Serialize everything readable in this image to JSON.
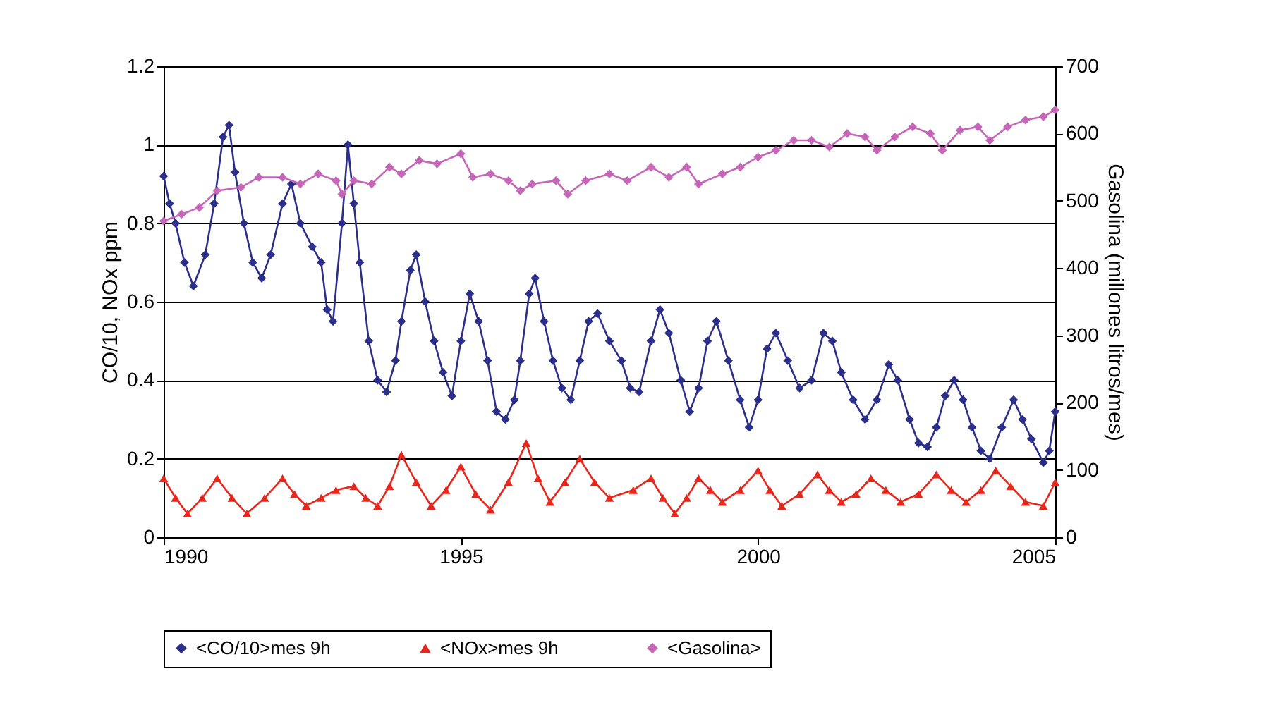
{
  "chart_data": {
    "type": "line",
    "xlim": [
      1990,
      2005
    ],
    "xticks": [
      1990,
      1995,
      2000,
      2005
    ],
    "ylabel": "CO/10, NOx ppm",
    "y2label": "Gasolina (millones litros/mes)",
    "ylim": [
      0,
      1.2
    ],
    "yticks": [
      0,
      0.2,
      0.4,
      0.6,
      0.8,
      1,
      1.2
    ],
    "y2lim": [
      0,
      700
    ],
    "y2ticks": [
      0,
      100,
      200,
      300,
      400,
      500,
      600,
      700
    ],
    "grid": "y",
    "legend": "bottom",
    "series": [
      {
        "name": "<CO/10>mes 9h",
        "color": "#2b2f8a",
        "marker": "diamond",
        "x": [
          1990.0,
          1990.1,
          1990.2,
          1990.35,
          1990.5,
          1990.7,
          1990.85,
          1991.0,
          1991.1,
          1991.2,
          1991.35,
          1991.5,
          1991.65,
          1991.8,
          1992.0,
          1992.15,
          1992.3,
          1992.5,
          1992.65,
          1992.75,
          1992.85,
          1993.0,
          1993.1,
          1993.2,
          1993.3,
          1993.45,
          1993.6,
          1993.75,
          1993.9,
          1994.0,
          1994.15,
          1994.25,
          1994.4,
          1994.55,
          1994.7,
          1994.85,
          1995.0,
          1995.15,
          1995.3,
          1995.45,
          1995.6,
          1995.75,
          1995.9,
          1996.0,
          1996.15,
          1996.25,
          1996.4,
          1996.55,
          1996.7,
          1996.85,
          1997.0,
          1997.15,
          1997.3,
          1997.5,
          1997.7,
          1997.85,
          1998.0,
          1998.2,
          1998.35,
          1998.5,
          1998.7,
          1998.85,
          1999.0,
          1999.15,
          1999.3,
          1999.5,
          1999.7,
          1999.85,
          2000.0,
          2000.15,
          2000.3,
          2000.5,
          2000.7,
          2000.9,
          2001.1,
          2001.25,
          2001.4,
          2001.6,
          2001.8,
          2002.0,
          2002.2,
          2002.35,
          2002.55,
          2002.7,
          2002.85,
          2003.0,
          2003.15,
          2003.3,
          2003.45,
          2003.6,
          2003.75,
          2003.9,
          2004.1,
          2004.3,
          2004.45,
          2004.6,
          2004.8,
          2004.9,
          2005.0
        ],
        "values": [
          0.92,
          0.85,
          0.8,
          0.7,
          0.64,
          0.72,
          0.85,
          1.02,
          1.05,
          0.93,
          0.8,
          0.7,
          0.66,
          0.72,
          0.85,
          0.9,
          0.8,
          0.74,
          0.7,
          0.58,
          0.55,
          0.8,
          1.0,
          0.85,
          0.7,
          0.5,
          0.4,
          0.37,
          0.45,
          0.55,
          0.68,
          0.72,
          0.6,
          0.5,
          0.42,
          0.36,
          0.5,
          0.62,
          0.55,
          0.45,
          0.32,
          0.3,
          0.35,
          0.45,
          0.62,
          0.66,
          0.55,
          0.45,
          0.38,
          0.35,
          0.45,
          0.55,
          0.57,
          0.5,
          0.45,
          0.38,
          0.37,
          0.5,
          0.58,
          0.52,
          0.4,
          0.32,
          0.38,
          0.5,
          0.55,
          0.45,
          0.35,
          0.28,
          0.35,
          0.48,
          0.52,
          0.45,
          0.38,
          0.4,
          0.52,
          0.5,
          0.42,
          0.35,
          0.3,
          0.35,
          0.44,
          0.4,
          0.3,
          0.24,
          0.23,
          0.28,
          0.36,
          0.4,
          0.35,
          0.28,
          0.22,
          0.2,
          0.28,
          0.35,
          0.3,
          0.25,
          0.19,
          0.22,
          0.32
        ]
      },
      {
        "name": "<NOx>mes 9h",
        "color": "#e8261c",
        "marker": "triangle",
        "x": [
          1990.0,
          1990.2,
          1990.4,
          1990.65,
          1990.9,
          1991.15,
          1991.4,
          1991.7,
          1992.0,
          1992.2,
          1992.4,
          1992.65,
          1992.9,
          1993.2,
          1993.4,
          1993.6,
          1993.8,
          1994.0,
          1994.25,
          1994.5,
          1994.75,
          1995.0,
          1995.25,
          1995.5,
          1995.8,
          1996.1,
          1996.3,
          1996.5,
          1996.75,
          1997.0,
          1997.25,
          1997.5,
          1997.9,
          1998.2,
          1998.4,
          1998.6,
          1998.8,
          1999.0,
          1999.2,
          1999.4,
          1999.7,
          2000.0,
          2000.2,
          2000.4,
          2000.7,
          2001.0,
          2001.2,
          2001.4,
          2001.65,
          2001.9,
          2002.15,
          2002.4,
          2002.7,
          2003.0,
          2003.25,
          2003.5,
          2003.75,
          2004.0,
          2004.25,
          2004.5,
          2004.8,
          2005.0
        ],
        "values": [
          0.15,
          0.1,
          0.06,
          0.1,
          0.15,
          0.1,
          0.06,
          0.1,
          0.15,
          0.11,
          0.08,
          0.1,
          0.12,
          0.13,
          0.1,
          0.08,
          0.13,
          0.21,
          0.14,
          0.08,
          0.12,
          0.18,
          0.11,
          0.07,
          0.14,
          0.24,
          0.15,
          0.09,
          0.14,
          0.2,
          0.14,
          0.1,
          0.12,
          0.15,
          0.1,
          0.06,
          0.1,
          0.15,
          0.12,
          0.09,
          0.12,
          0.17,
          0.12,
          0.08,
          0.11,
          0.16,
          0.12,
          0.09,
          0.11,
          0.15,
          0.12,
          0.09,
          0.11,
          0.16,
          0.12,
          0.09,
          0.12,
          0.17,
          0.13,
          0.09,
          0.08,
          0.14
        ]
      },
      {
        "name": "<Gasolina>",
        "color": "#c566b8",
        "marker": "diamond",
        "axis": "y2",
        "x": [
          1990.0,
          1990.3,
          1990.6,
          1990.9,
          1991.3,
          1991.6,
          1992.0,
          1992.3,
          1992.6,
          1992.9,
          1993.0,
          1993.2,
          1993.5,
          1993.8,
          1994.0,
          1994.3,
          1994.6,
          1995.0,
          1995.2,
          1995.5,
          1995.8,
          1996.0,
          1996.2,
          1996.6,
          1996.8,
          1997.1,
          1997.5,
          1997.8,
          1998.2,
          1998.5,
          1998.8,
          1999.0,
          1999.4,
          1999.7,
          2000.0,
          2000.3,
          2000.6,
          2000.9,
          2001.2,
          2001.5,
          2001.8,
          2002.0,
          2002.3,
          2002.6,
          2002.9,
          2003.1,
          2003.4,
          2003.7,
          2003.9,
          2004.2,
          2004.5,
          2004.8,
          2005.0
        ],
        "values": [
          470,
          480,
          490,
          515,
          520,
          535,
          535,
          525,
          540,
          530,
          510,
          530,
          525,
          550,
          540,
          560,
          555,
          570,
          535,
          540,
          530,
          515,
          525,
          530,
          510,
          530,
          540,
          530,
          550,
          535,
          550,
          525,
          540,
          550,
          565,
          575,
          590,
          590,
          580,
          600,
          595,
          575,
          595,
          610,
          600,
          575,
          605,
          610,
          590,
          610,
          620,
          625,
          635
        ]
      }
    ]
  }
}
